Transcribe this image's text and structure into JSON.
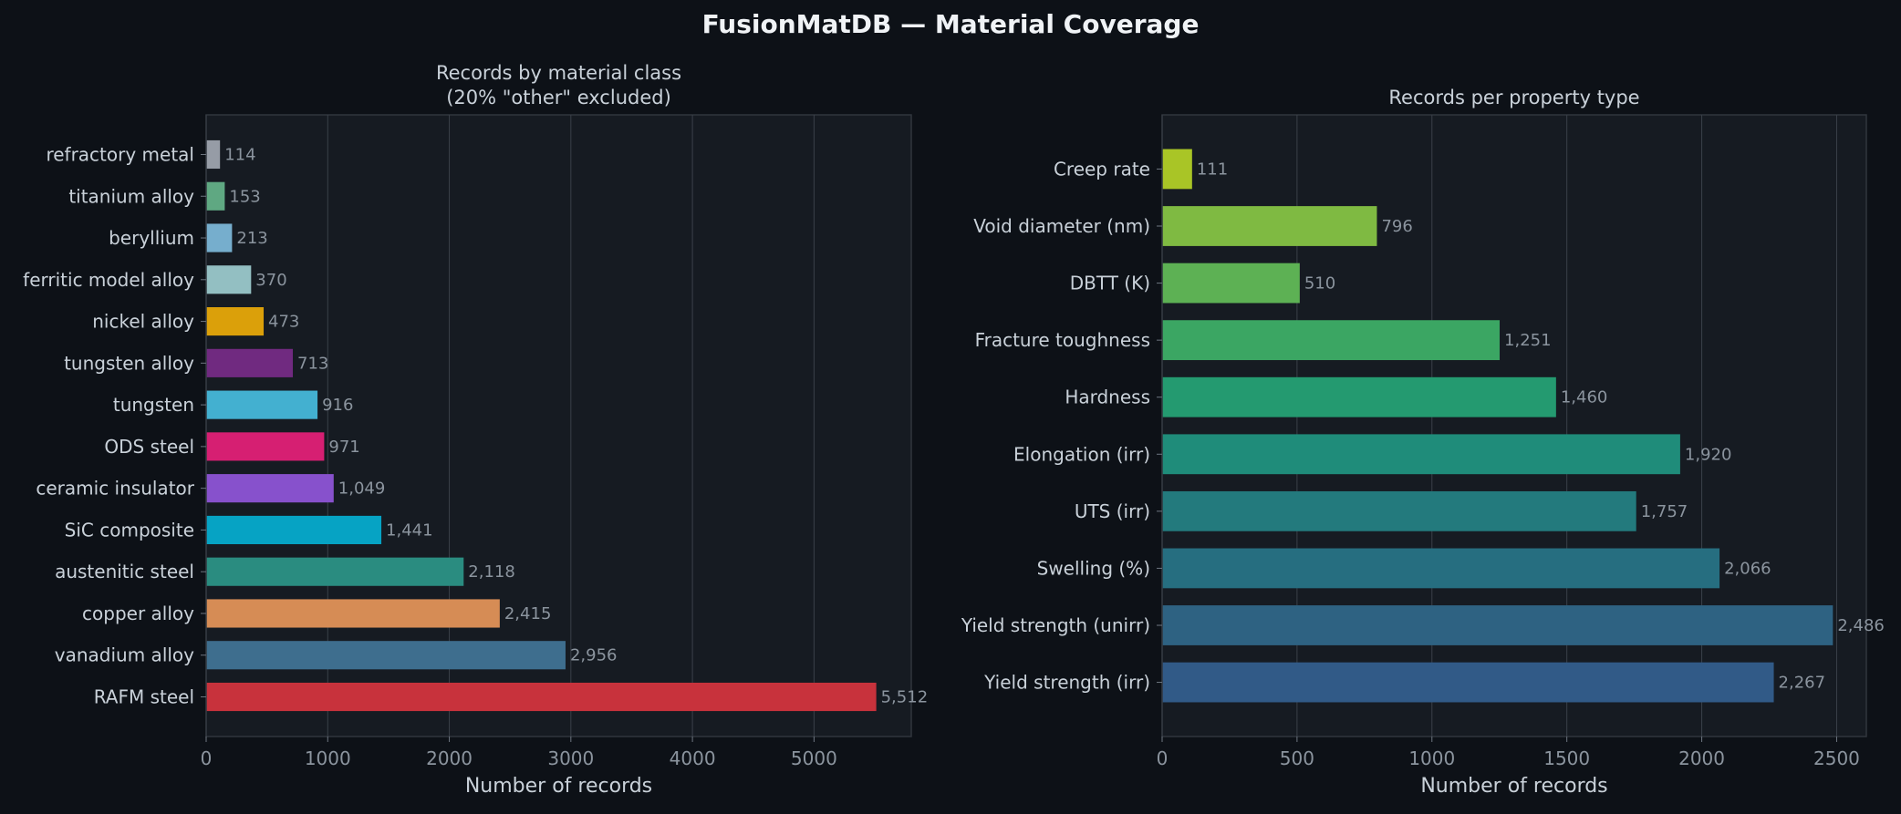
{
  "figure": {
    "title": "FusionMatDB — Material Coverage"
  },
  "chart_data": [
    {
      "type": "bar",
      "orientation": "horizontal",
      "title": "Records by material class\n(20% \"other\" excluded)",
      "xlabel": "Number of records",
      "ylabel": "",
      "xlim": [
        0,
        5800
      ],
      "xticks": [
        0,
        1000,
        2000,
        3000,
        4000,
        5000
      ],
      "xtick_labels": [
        "0",
        "1000",
        "2000",
        "3000",
        "4000",
        "5000"
      ],
      "grid": "x",
      "categories": [
        "RAFM steel",
        "vanadium alloy",
        "copper alloy",
        "austenitic steel",
        "SiC composite",
        "ceramic insulator",
        "ODS steel",
        "tungsten",
        "tungsten alloy",
        "nickel alloy",
        "ferritic model alloy",
        "beryllium",
        "titanium alloy",
        "refractory metal"
      ],
      "values": [
        5512,
        2956,
        2415,
        2118,
        1441,
        1049,
        971,
        916,
        713,
        473,
        370,
        213,
        153,
        114
      ],
      "value_labels": [
        "5,512",
        "2,956",
        "2,415",
        "2,118",
        "1,441",
        "1,049",
        "971",
        "916",
        "713",
        "473",
        "370",
        "213",
        "153",
        "114"
      ],
      "colors": [
        "#c8323c",
        "#3e6e8e",
        "#d68c55",
        "#2a8c80",
        "#06a3c4",
        "#8751cc",
        "#d61f72",
        "#43b0d0",
        "#702a80",
        "#dba00a",
        "#93bfc2",
        "#76aecd",
        "#5fa882",
        "#969ca6"
      ]
    },
    {
      "type": "bar",
      "orientation": "horizontal",
      "title": "Records per property type",
      "xlabel": "Number of records",
      "ylabel": "",
      "xlim": [
        0,
        2610
      ],
      "xticks": [
        0,
        500,
        1000,
        1500,
        2000,
        2500
      ],
      "xtick_labels": [
        "0",
        "500",
        "1000",
        "1500",
        "2000",
        "2500"
      ],
      "grid": "x",
      "categories": [
        "Yield strength (irr)",
        "Yield strength (unirr)",
        "Swelling (%)",
        "UTS (irr)",
        "Elongation (irr)",
        "Hardness",
        "Fracture toughness",
        "DBTT (K)",
        "Void diameter (nm)",
        "Creep rate"
      ],
      "values": [
        2267,
        2486,
        2066,
        1757,
        1920,
        1460,
        1251,
        510,
        796,
        111
      ],
      "value_labels": [
        "2,267",
        "2,486",
        "2,066",
        "1,757",
        "1,920",
        "1,460",
        "1,251",
        "510",
        "796",
        "111"
      ],
      "colors": [
        "#315a87",
        "#2e6282",
        "#266e80",
        "#237a7d",
        "#1f8c7a",
        "#249a70",
        "#3ba663",
        "#5db154",
        "#7fba42",
        "#a9c526"
      ]
    }
  ]
}
